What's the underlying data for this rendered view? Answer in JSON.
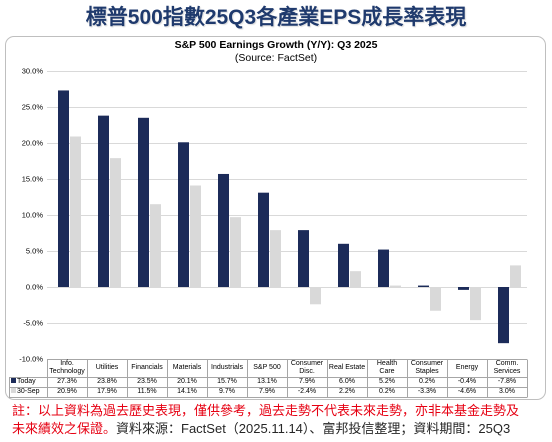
{
  "title": "標普500指數25Q3各產業EPS成長率表現",
  "chart_data": {
    "type": "bar",
    "title": "S&P 500 Earnings Growth (Y/Y): Q3 2025",
    "subtitle": "(Source: FactSet)",
    "categories": [
      "Info. Technology",
      "Utilities",
      "Financials",
      "Materials",
      "Industrials",
      "S&P 500",
      "Consumer Disc.",
      "Real Estate",
      "Health Care",
      "Consumer Staples",
      "Energy",
      "Comm. Services"
    ],
    "series": [
      {
        "name": "Today",
        "values": [
          27.3,
          23.8,
          23.5,
          20.1,
          15.7,
          13.1,
          7.9,
          6.0,
          5.2,
          0.2,
          -0.4,
          -7.8
        ],
        "color": "#1c2b59"
      },
      {
        "name": "30-Sep",
        "values": [
          20.9,
          17.9,
          11.5,
          14.1,
          9.7,
          7.9,
          -2.4,
          2.2,
          0.2,
          -3.3,
          -4.6,
          3.0
        ],
        "color": "#d9d9d9"
      }
    ],
    "unit": "%",
    "ylim": [
      -10,
      30
    ],
    "y_ticks": [
      30,
      25,
      20,
      15,
      10,
      5,
      0,
      -5,
      -10
    ],
    "y_tick_labels": [
      "30.0%",
      "25.0%",
      "20.0%",
      "15.0%",
      "10.0%",
      "5.0%",
      "0.0%",
      "-5.0%",
      "-10.0%"
    ],
    "grid": true,
    "legend": "bottom"
  },
  "note": {
    "line1": "註：以上資料為過去歷史表現，僅供參考，過去走勢不代表未來走勢，亦非本基金走勢及",
    "line2": "未來績效之保證。",
    "source": "資料來源：FactSet（2025.11.14）、富邦投信整理；資料期間：25Q3"
  },
  "colors": {
    "title": "#1f3a6d",
    "note": "#e60012",
    "source": "#262626",
    "gridline": "#d9d9d9",
    "table_border": "#a6a6a6"
  }
}
